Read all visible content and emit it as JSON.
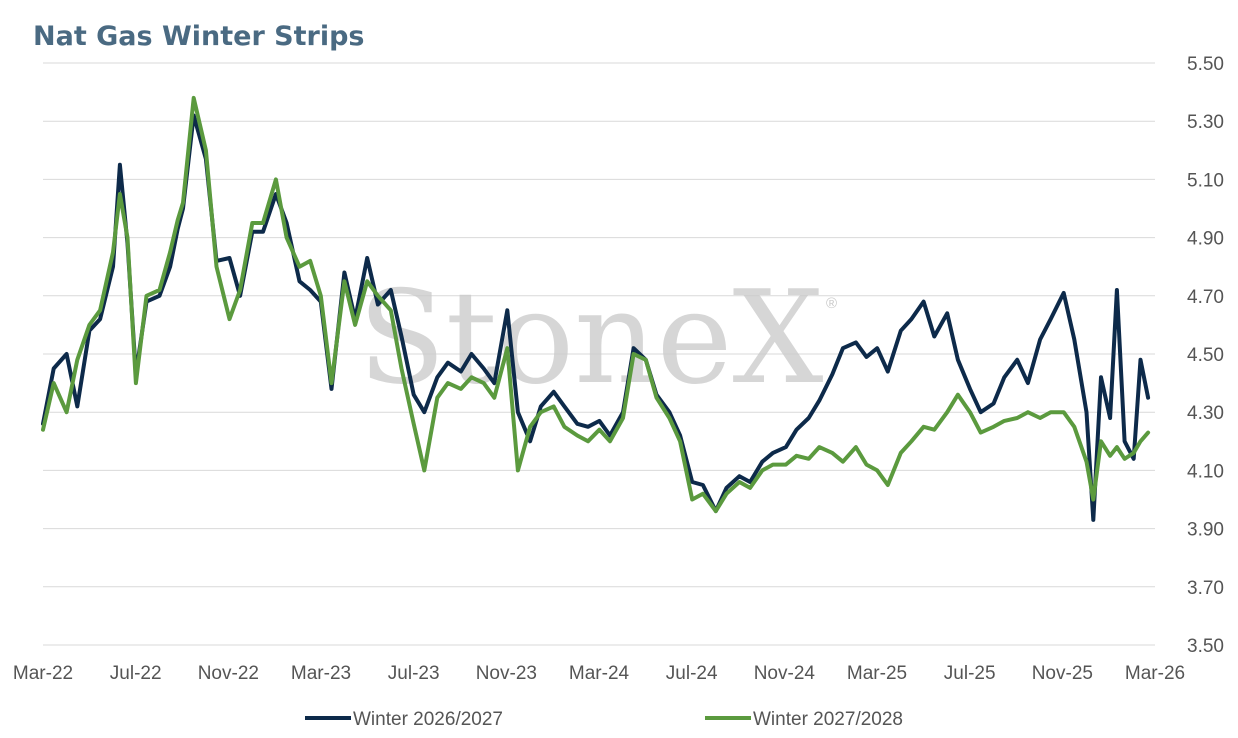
{
  "chart_data": {
    "type": "line",
    "title": "Nat Gas Winter Strips",
    "xlabel": "",
    "ylabel": "",
    "y_axis_position": "right",
    "ylim": [
      3.5,
      5.5
    ],
    "y_ticks": [
      "3.50",
      "3.70",
      "3.90",
      "4.10",
      "4.30",
      "4.50",
      "4.70",
      "4.90",
      "5.10",
      "5.30",
      "5.50"
    ],
    "x_ticks": [
      "Mar-22",
      "Jul-22",
      "Nov-22",
      "Mar-23",
      "Jul-23",
      "Nov-23",
      "Mar-24",
      "Jul-24",
      "Nov-24",
      "Mar-25",
      "Jul-25",
      "Nov-25",
      "Mar-26"
    ],
    "grid": "horizontal",
    "legend_position": "bottom",
    "watermark": "StoneX",
    "series": [
      {
        "name": "Winter 2026/2027",
        "color": "#0d2a4a",
        "x": [
          "2022-03-01",
          "2022-03-15",
          "2022-04-01",
          "2022-04-15",
          "2022-05-01",
          "2022-05-15",
          "2022-06-01",
          "2022-06-10",
          "2022-06-20",
          "2022-07-01",
          "2022-07-15",
          "2022-08-01",
          "2022-08-15",
          "2022-08-25",
          "2022-09-01",
          "2022-09-15",
          "2022-10-01",
          "2022-10-15",
          "2022-11-01",
          "2022-11-15",
          "2022-12-01",
          "2022-12-15",
          "2023-01-01",
          "2023-01-15",
          "2023-02-01",
          "2023-02-15",
          "2023-03-01",
          "2023-03-15",
          "2023-04-01",
          "2023-04-15",
          "2023-05-01",
          "2023-05-15",
          "2023-06-01",
          "2023-06-15",
          "2023-07-01",
          "2023-07-15",
          "2023-08-01",
          "2023-08-15",
          "2023-09-01",
          "2023-09-15",
          "2023-10-01",
          "2023-10-15",
          "2023-11-01",
          "2023-11-15",
          "2023-12-01",
          "2023-12-15",
          "2024-01-01",
          "2024-01-15",
          "2024-02-01",
          "2024-02-15",
          "2024-03-01",
          "2024-03-15",
          "2024-04-01",
          "2024-04-15",
          "2024-05-01",
          "2024-05-15",
          "2024-06-01",
          "2024-06-15",
          "2024-07-01",
          "2024-07-15",
          "2024-08-01",
          "2024-08-15",
          "2024-09-01",
          "2024-09-15",
          "2024-10-01",
          "2024-10-15",
          "2024-11-01",
          "2024-11-15",
          "2024-12-01",
          "2024-12-15",
          "2025-01-01",
          "2025-01-15",
          "2025-02-01",
          "2025-02-15",
          "2025-03-01",
          "2025-03-15",
          "2025-04-01",
          "2025-04-15",
          "2025-05-01",
          "2025-05-15",
          "2025-06-01",
          "2025-06-15",
          "2025-07-01",
          "2025-07-15",
          "2025-08-01",
          "2025-08-15",
          "2025-09-01",
          "2025-09-15",
          "2025-10-01",
          "2025-10-15",
          "2025-11-01",
          "2025-11-15",
          "2025-12-01",
          "2025-12-10",
          "2025-12-20",
          "2026-01-01",
          "2026-01-10",
          "2026-01-20",
          "2026-02-01",
          "2026-02-10",
          "2026-02-20"
        ],
        "values": [
          4.26,
          4.45,
          4.5,
          4.32,
          4.58,
          4.62,
          4.8,
          5.15,
          4.88,
          4.43,
          4.68,
          4.7,
          4.8,
          4.93,
          5.0,
          5.32,
          5.17,
          4.82,
          4.83,
          4.7,
          4.92,
          4.92,
          5.05,
          4.95,
          4.75,
          4.72,
          4.68,
          4.38,
          4.78,
          4.62,
          4.83,
          4.67,
          4.72,
          4.56,
          4.36,
          4.3,
          4.42,
          4.47,
          4.44,
          4.5,
          4.45,
          4.4,
          4.65,
          4.3,
          4.2,
          4.32,
          4.37,
          4.32,
          4.26,
          4.25,
          4.27,
          4.22,
          4.3,
          4.52,
          4.48,
          4.36,
          4.3,
          4.22,
          4.06,
          4.05,
          3.96,
          4.04,
          4.08,
          4.06,
          4.13,
          4.16,
          4.18,
          4.24,
          4.28,
          4.34,
          4.43,
          4.52,
          4.54,
          4.49,
          4.52,
          4.44,
          4.58,
          4.62,
          4.68,
          4.56,
          4.64,
          4.48,
          4.38,
          4.3,
          4.33,
          4.42,
          4.48,
          4.4,
          4.55,
          4.62,
          4.71,
          4.55,
          4.3,
          3.93,
          4.42,
          4.28,
          4.72,
          4.2,
          4.14,
          4.48,
          4.35
        ]
      },
      {
        "name": "Winter 2027/2028",
        "color": "#5b9a3e",
        "x": [
          "2022-03-01",
          "2022-03-15",
          "2022-04-01",
          "2022-04-15",
          "2022-05-01",
          "2022-05-15",
          "2022-06-01",
          "2022-06-10",
          "2022-06-20",
          "2022-07-01",
          "2022-07-15",
          "2022-08-01",
          "2022-08-15",
          "2022-08-25",
          "2022-09-01",
          "2022-09-15",
          "2022-10-01",
          "2022-10-15",
          "2022-11-01",
          "2022-11-15",
          "2022-12-01",
          "2022-12-15",
          "2023-01-01",
          "2023-01-15",
          "2023-02-01",
          "2023-02-15",
          "2023-03-01",
          "2023-03-15",
          "2023-04-01",
          "2023-04-15",
          "2023-05-01",
          "2023-05-15",
          "2023-06-01",
          "2023-06-15",
          "2023-07-01",
          "2023-07-15",
          "2023-08-01",
          "2023-08-15",
          "2023-09-01",
          "2023-09-15",
          "2023-10-01",
          "2023-10-15",
          "2023-11-01",
          "2023-11-15",
          "2023-12-01",
          "2023-12-15",
          "2024-01-01",
          "2024-01-15",
          "2024-02-01",
          "2024-02-15",
          "2024-03-01",
          "2024-03-15",
          "2024-04-01",
          "2024-04-15",
          "2024-05-01",
          "2024-05-15",
          "2024-06-01",
          "2024-06-15",
          "2024-07-01",
          "2024-07-15",
          "2024-08-01",
          "2024-08-15",
          "2024-09-01",
          "2024-09-15",
          "2024-10-01",
          "2024-10-15",
          "2024-11-01",
          "2024-11-15",
          "2024-12-01",
          "2024-12-15",
          "2025-01-01",
          "2025-01-15",
          "2025-02-01",
          "2025-02-15",
          "2025-03-01",
          "2025-03-15",
          "2025-04-01",
          "2025-04-15",
          "2025-05-01",
          "2025-05-15",
          "2025-06-01",
          "2025-06-15",
          "2025-07-01",
          "2025-07-15",
          "2025-08-01",
          "2025-08-15",
          "2025-09-01",
          "2025-09-15",
          "2025-10-01",
          "2025-10-15",
          "2025-11-01",
          "2025-11-15",
          "2025-12-01",
          "2025-12-10",
          "2025-12-20",
          "2026-01-01",
          "2026-01-10",
          "2026-01-20",
          "2026-02-01",
          "2026-02-10",
          "2026-02-20"
        ],
        "values": [
          4.24,
          4.4,
          4.3,
          4.48,
          4.6,
          4.65,
          4.85,
          5.05,
          4.9,
          4.4,
          4.7,
          4.72,
          4.85,
          4.96,
          5.02,
          5.38,
          5.2,
          4.8,
          4.62,
          4.72,
          4.95,
          4.95,
          5.1,
          4.9,
          4.8,
          4.82,
          4.7,
          4.4,
          4.75,
          4.6,
          4.75,
          4.7,
          4.65,
          4.45,
          4.26,
          4.1,
          4.35,
          4.4,
          4.38,
          4.42,
          4.4,
          4.35,
          4.52,
          4.1,
          4.25,
          4.3,
          4.32,
          4.25,
          4.22,
          4.2,
          4.24,
          4.2,
          4.28,
          4.5,
          4.48,
          4.35,
          4.28,
          4.2,
          4.0,
          4.02,
          3.96,
          4.02,
          4.06,
          4.04,
          4.1,
          4.12,
          4.12,
          4.15,
          4.14,
          4.18,
          4.16,
          4.13,
          4.18,
          4.12,
          4.1,
          4.05,
          4.16,
          4.2,
          4.25,
          4.24,
          4.3,
          4.36,
          4.3,
          4.23,
          4.25,
          4.27,
          4.28,
          4.3,
          4.28,
          4.3,
          4.3,
          4.25,
          4.13,
          4.0,
          4.2,
          4.15,
          4.18,
          4.14,
          4.16,
          4.2,
          4.23
        ]
      }
    ]
  }
}
